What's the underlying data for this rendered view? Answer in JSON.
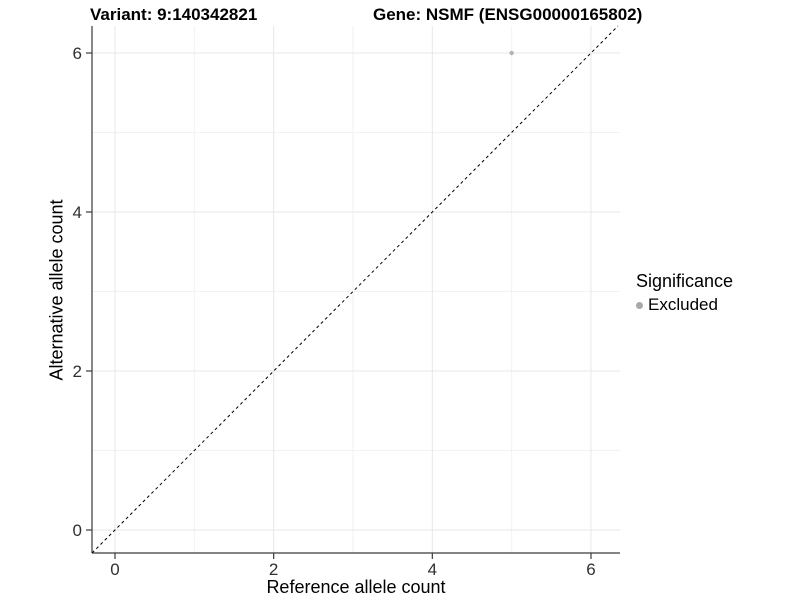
{
  "titles": {
    "variant": "Variant: 9:140342821",
    "gene": "Gene: NSMF (ENSG00000165802)"
  },
  "chart_data": {
    "type": "scatter",
    "xlabel": "Reference allele count",
    "ylabel": "Alternative allele count",
    "x_ticks": [
      0,
      2,
      4,
      6
    ],
    "y_ticks": [
      0,
      2,
      4,
      6
    ],
    "x_minor": [
      1,
      3,
      5
    ],
    "y_minor": [
      1,
      3,
      5
    ],
    "xlim": [
      -0.29,
      6.37
    ],
    "ylim": [
      -0.29,
      6.34
    ],
    "grid": true,
    "points": [
      {
        "x": 5,
        "y": 6,
        "significance": "Excluded"
      }
    ],
    "reference_line": {
      "type": "identity",
      "style": "dashed",
      "color": "#000000"
    },
    "legend": {
      "title": "Significance",
      "position": "right",
      "items": [
        {
          "label": "Excluded",
          "color": "#a8a8a8"
        }
      ]
    },
    "colors": {
      "point": "#b3b3b3",
      "grid_major": "#e7e7e7",
      "grid_minor": "#f2f2f2",
      "axis": "#3a3a3a",
      "tick_label": "#303030"
    }
  }
}
